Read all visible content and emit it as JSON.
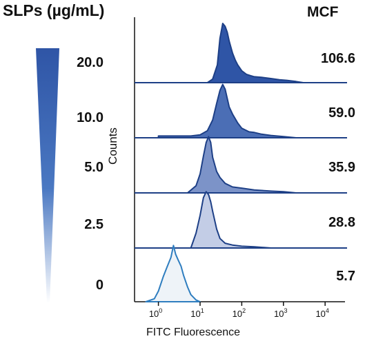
{
  "legend": {
    "title": "SLPs (µg/mL)",
    "concentrations": [
      "20.0",
      "10.0",
      "5.0",
      "2.5",
      "0"
    ],
    "gradient_from": "#2f55a6",
    "gradient_to": "#ffffff"
  },
  "cell_line": "MCF",
  "chart_data": {
    "type": "area",
    "subtype": "stacked flow cytometry histograms",
    "xlabel": "FITC Fluorescence",
    "ylabel": "Counts",
    "xscale": "log",
    "xlim": [
      0.3,
      30000
    ],
    "x_ticks": [
      {
        "value": 1,
        "base": "10",
        "exp": "0"
      },
      {
        "value": 10,
        "base": "10",
        "exp": "1"
      },
      {
        "value": 100,
        "base": "10",
        "exp": "2"
      },
      {
        "value": 1000,
        "base": "10",
        "exp": "3"
      },
      {
        "value": 10000,
        "base": "10",
        "exp": "4"
      }
    ],
    "series": [
      {
        "concentration": "20.0",
        "mfi": "106.6",
        "fill": "#2f55a6",
        "stroke": "#1d3f86",
        "x": [
          15,
          20,
          26,
          30,
          35,
          40,
          45,
          50,
          60,
          70,
          80,
          100,
          130,
          160,
          200,
          300,
          500,
          800,
          1200,
          2000,
          3000
        ],
        "y": [
          0.0,
          0.06,
          0.3,
          0.75,
          1.0,
          0.95,
          0.85,
          0.7,
          0.5,
          0.38,
          0.3,
          0.2,
          0.14,
          0.12,
          0.1,
          0.09,
          0.07,
          0.05,
          0.04,
          0.02,
          0.0
        ]
      },
      {
        "concentration": "10.0",
        "mfi": "59.0",
        "fill": "#4b6eb5",
        "stroke": "#1d3f86",
        "x": [
          1,
          3,
          6,
          10,
          15,
          20,
          25,
          30,
          35,
          40,
          50,
          60,
          80,
          100,
          150,
          200,
          300,
          500,
          1000,
          2000
        ],
        "y": [
          0.03,
          0.03,
          0.03,
          0.05,
          0.12,
          0.3,
          0.58,
          0.8,
          0.9,
          0.82,
          0.52,
          0.4,
          0.25,
          0.16,
          0.1,
          0.09,
          0.06,
          0.04,
          0.02,
          0.0
        ]
      },
      {
        "concentration": "5.0",
        "mfi": "35.9",
        "fill": "#7c93c8",
        "stroke": "#1d3f86",
        "x": [
          5,
          8,
          10,
          12,
          14,
          16,
          18,
          20,
          25,
          30,
          40,
          60,
          100,
          200,
          500,
          1000,
          2000
        ],
        "y": [
          0.0,
          0.12,
          0.32,
          0.62,
          0.85,
          0.95,
          0.85,
          0.6,
          0.36,
          0.26,
          0.16,
          0.1,
          0.08,
          0.05,
          0.03,
          0.02,
          0.0
        ]
      },
      {
        "concentration": "2.5",
        "mfi": "28.8",
        "fill": "#c3cde6",
        "stroke": "#1d3f86",
        "x": [
          6,
          8,
          10,
          12,
          14,
          16,
          18,
          20,
          25,
          30,
          40,
          60,
          100,
          200,
          500
        ],
        "y": [
          0.0,
          0.25,
          0.55,
          0.85,
          0.95,
          0.9,
          0.78,
          0.62,
          0.32,
          0.16,
          0.08,
          0.05,
          0.03,
          0.02,
          0.0
        ]
      },
      {
        "concentration": "0",
        "mfi": "5.7",
        "fill": "#eef3f8",
        "stroke": "#2e7dbf",
        "x": [
          0.5,
          0.8,
          1,
          1.3,
          1.6,
          2,
          2.3,
          2.6,
          3,
          3.5,
          4,
          5,
          6,
          8,
          10
        ],
        "y": [
          0.0,
          0.05,
          0.18,
          0.42,
          0.58,
          0.75,
          0.95,
          0.8,
          0.7,
          0.6,
          0.45,
          0.25,
          0.12,
          0.03,
          0.0
        ]
      }
    ]
  }
}
